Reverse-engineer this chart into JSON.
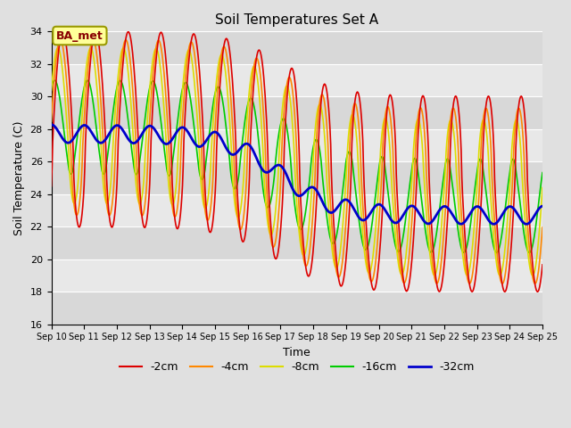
{
  "title": "Soil Temperatures Set A",
  "xlabel": "Time",
  "ylabel": "Soil Temperature (C)",
  "annotation": "BA_met",
  "ylim": [
    16,
    34
  ],
  "yticks": [
    16,
    18,
    20,
    22,
    24,
    26,
    28,
    30,
    32,
    34
  ],
  "x_labels": [
    "Sep 10",
    "Sep 11",
    "Sep 12",
    "Sep 13",
    "Sep 14",
    "Sep 15",
    "Sep 16",
    "Sep 17",
    "Sep 18",
    "Sep 19",
    "Sep 20",
    "Sep 21",
    "Sep 22",
    "Sep 23",
    "Sep 24",
    "Sep 25"
  ],
  "series": {
    "-2cm": {
      "color": "#dd0000",
      "lw": 1.2
    },
    "-4cm": {
      "color": "#ff8800",
      "lw": 1.2
    },
    "-8cm": {
      "color": "#dddd00",
      "lw": 1.2
    },
    "-16cm": {
      "color": "#00cc00",
      "lw": 1.2
    },
    "-32cm": {
      "color": "#0000cc",
      "lw": 2.0
    }
  },
  "legend_order": [
    "-2cm",
    "-4cm",
    "-8cm",
    "-16cm",
    "-32cm"
  ],
  "bg_color": "#e0e0e0",
  "plot_bg_color": "#ebebeb",
  "grid_color": "#ffffff",
  "annotation_bg": "#ffff99",
  "annotation_border": "#999900"
}
